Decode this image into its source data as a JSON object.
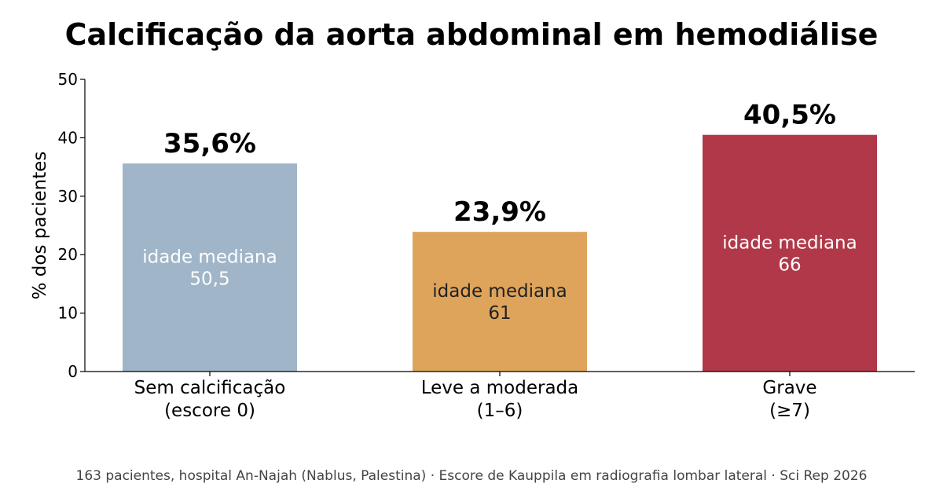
{
  "chart_data": {
    "type": "bar",
    "title": "Calcificação da aorta abdominal em hemodiálise",
    "ylabel": "% dos pacientes",
    "xlabel": "",
    "ylim": [
      0,
      50
    ],
    "yticks": [
      0,
      10,
      20,
      30,
      40,
      50
    ],
    "grid": false,
    "categories": [
      [
        "Sem calcificação",
        "(escore 0)"
      ],
      [
        "Leve a moderada",
        "(1–6)"
      ],
      [
        "Grave",
        "(≥7)"
      ]
    ],
    "values": [
      35.6,
      23.9,
      40.5
    ],
    "value_labels": [
      "35,6%",
      "23,9%",
      "40,5%"
    ],
    "inner_labels": [
      [
        "idade mediana",
        "50,5"
      ],
      [
        "idade mediana",
        "61"
      ],
      [
        "idade mediana",
        "66"
      ]
    ],
    "colors": [
      "#a0b5c8",
      "#dfa45b",
      "#b03848"
    ],
    "inner_label_colors": [
      "#ffffff",
      "#222222",
      "#ffffff"
    ],
    "footnote": "163 pacientes, hospital An-Najah (Nablus, Palestina) · Escore de Kauppila em radiografia lombar lateral · Sci Rep 2026"
  }
}
